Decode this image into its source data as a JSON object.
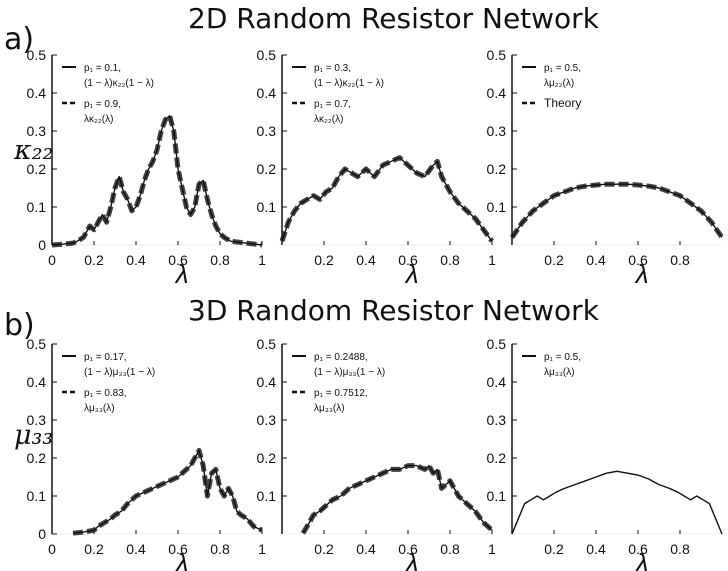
{
  "rows": [
    {
      "tag": "a)",
      "title": "2D Random Resistor Network",
      "ylabel": "κ₂₂"
    },
    {
      "tag": "b)",
      "title": "3D Random Resistor Network",
      "ylabel": "μ₃₃"
    }
  ],
  "chart_data": [
    {
      "type": "line",
      "row": 0,
      "col": 0,
      "xlim": [
        0,
        1
      ],
      "ylim": [
        0,
        0.5
      ],
      "xticks": [
        "0",
        "0.2",
        "0.4",
        "0.6",
        "0.8",
        "1"
      ],
      "yticks": [
        "0",
        "0.1",
        "0.2",
        "0.3",
        "0.4",
        "0.5"
      ],
      "xlabel": "λ",
      "legend": [
        "p₁ = 0.1,",
        "(1 − λ)κ₂₂(1 − λ)",
        "p₁ = 0.9,",
        "λκ₂₂(λ)"
      ],
      "legend_style": [
        "solid",
        null,
        "dashed",
        null
      ],
      "series": [
        {
          "line": "solid-and-dashed",
          "x": [
            0,
            0.05,
            0.1,
            0.12,
            0.15,
            0.18,
            0.2,
            0.22,
            0.24,
            0.26,
            0.28,
            0.3,
            0.32,
            0.34,
            0.36,
            0.38,
            0.4,
            0.42,
            0.44,
            0.46,
            0.48,
            0.5,
            0.52,
            0.54,
            0.56,
            0.58,
            0.6,
            0.62,
            0.64,
            0.66,
            0.68,
            0.7,
            0.72,
            0.74,
            0.76,
            0.78,
            0.8,
            0.82,
            0.85,
            1.0
          ],
          "y": [
            0,
            0.002,
            0.005,
            0.01,
            0.02,
            0.05,
            0.04,
            0.06,
            0.08,
            0.06,
            0.1,
            0.15,
            0.18,
            0.14,
            0.12,
            0.09,
            0.1,
            0.13,
            0.17,
            0.2,
            0.22,
            0.25,
            0.3,
            0.33,
            0.34,
            0.3,
            0.2,
            0.15,
            0.1,
            0.08,
            0.1,
            0.16,
            0.17,
            0.12,
            0.08,
            0.05,
            0.03,
            0.02,
            0.01,
            0
          ]
        }
      ]
    },
    {
      "type": "line",
      "row": 0,
      "col": 1,
      "xlim": [
        0,
        1
      ],
      "ylim": [
        0,
        0.5
      ],
      "xticks": [
        "0.2",
        "0.4",
        "0.6",
        "0.8",
        "1"
      ],
      "yticks": [
        "0.1",
        "0.2",
        "0.3",
        "0.4",
        "0.5"
      ],
      "xlabel": "λ",
      "legend": [
        "p₁ = 0.3,",
        "(1 − λ)κ₂₂(1 − λ)",
        "p₁ = 0.7,",
        "λκ₂₂(λ)"
      ],
      "legend_style": [
        "solid",
        null,
        "dashed",
        null
      ],
      "series": [
        {
          "line": "solid-and-dashed",
          "x": [
            0,
            0.03,
            0.06,
            0.09,
            0.12,
            0.15,
            0.18,
            0.21,
            0.24,
            0.27,
            0.3,
            0.33,
            0.36,
            0.4,
            0.44,
            0.48,
            0.52,
            0.56,
            0.6,
            0.64,
            0.68,
            0.72,
            0.74,
            0.76,
            0.8,
            0.84,
            0.88,
            0.92,
            0.96,
            1.0
          ],
          "y": [
            0.01,
            0.06,
            0.09,
            0.11,
            0.12,
            0.13,
            0.12,
            0.14,
            0.15,
            0.18,
            0.2,
            0.19,
            0.18,
            0.2,
            0.18,
            0.21,
            0.22,
            0.23,
            0.21,
            0.19,
            0.18,
            0.21,
            0.22,
            0.18,
            0.14,
            0.11,
            0.09,
            0.07,
            0.04,
            0.01
          ]
        }
      ]
    },
    {
      "type": "line",
      "row": 0,
      "col": 2,
      "xlim": [
        0,
        1
      ],
      "ylim": [
        0,
        0.5
      ],
      "xticks": [
        "0.2",
        "0.4",
        "0.6",
        "0.8"
      ],
      "yticks": [
        "0.1",
        "0.2",
        "0.3",
        "0.4",
        "0.5"
      ],
      "xlabel": "λ",
      "legend": [
        "p₁ = 0.5,",
        "λμ₂₂(λ)",
        "Theory"
      ],
      "legend_style": [
        "solid",
        null,
        "dashed"
      ],
      "series": [
        {
          "line": "solid-and-dashed",
          "x": [
            0,
            0.05,
            0.1,
            0.15,
            0.2,
            0.25,
            0.3,
            0.35,
            0.4,
            0.45,
            0.5,
            0.55,
            0.6,
            0.65,
            0.7,
            0.75,
            0.8,
            0.85,
            0.9,
            0.95,
            1.0
          ],
          "y": [
            0.02,
            0.06,
            0.09,
            0.11,
            0.13,
            0.14,
            0.15,
            0.155,
            0.158,
            0.16,
            0.16,
            0.16,
            0.158,
            0.155,
            0.15,
            0.14,
            0.13,
            0.11,
            0.09,
            0.06,
            0.02
          ]
        }
      ]
    },
    {
      "type": "line",
      "row": 1,
      "col": 0,
      "xlim": [
        0,
        1
      ],
      "ylim": [
        0,
        0.5
      ],
      "xticks": [
        "0",
        "0.2",
        "0.4",
        "0.6",
        "0.8",
        "1"
      ],
      "yticks": [
        "0",
        "0.1",
        "0.2",
        "0.3",
        "0.4",
        "0.5"
      ],
      "xlabel": "λ",
      "legend": [
        "p₁ = 0.17,",
        "(1 − λ)μ₃₃(1 − λ)",
        "p₁ = 0.83,",
        "λμ₃₃(λ)"
      ],
      "legend_style": [
        "solid",
        null,
        "dashed",
        null
      ],
      "series": [
        {
          "line": "solid-and-dashed",
          "x": [
            0.1,
            0.15,
            0.2,
            0.22,
            0.25,
            0.28,
            0.3,
            0.33,
            0.36,
            0.4,
            0.44,
            0.48,
            0.52,
            0.56,
            0.6,
            0.64,
            0.66,
            0.68,
            0.7,
            0.72,
            0.74,
            0.76,
            0.78,
            0.8,
            0.82,
            0.84,
            0.86,
            0.88,
            0.9,
            0.93,
            0.96,
            1.0
          ],
          "y": [
            0.002,
            0.005,
            0.01,
            0.02,
            0.03,
            0.04,
            0.05,
            0.06,
            0.08,
            0.1,
            0.11,
            0.12,
            0.13,
            0.14,
            0.15,
            0.17,
            0.18,
            0.2,
            0.22,
            0.18,
            0.1,
            0.16,
            0.17,
            0.12,
            0.1,
            0.12,
            0.1,
            0.06,
            0.05,
            0.04,
            0.02,
            0.01
          ]
        }
      ]
    },
    {
      "type": "line",
      "row": 1,
      "col": 1,
      "xlim": [
        0,
        1
      ],
      "ylim": [
        0,
        0.5
      ],
      "xticks": [
        "0.2",
        "0.4",
        "0.6",
        "0.8",
        "1"
      ],
      "yticks": [
        "0.1",
        "0.2",
        "0.3",
        "0.4",
        "0.5"
      ],
      "xlabel": "λ",
      "legend": [
        "p₁ = 0.2488,",
        "(1 − λ)μ₃₃(1 − λ)",
        "p₁ = 0.7512,",
        "λμ₃₃(λ)"
      ],
      "legend_style": [
        "solid",
        null,
        "dashed",
        null
      ],
      "series": [
        {
          "line": "solid-and-dashed",
          "x": [
            0.1,
            0.13,
            0.15,
            0.18,
            0.2,
            0.24,
            0.28,
            0.32,
            0.36,
            0.4,
            0.44,
            0.48,
            0.52,
            0.56,
            0.6,
            0.64,
            0.68,
            0.7,
            0.72,
            0.74,
            0.76,
            0.8,
            0.84,
            0.88,
            0.92,
            0.96,
            1.0
          ],
          "y": [
            0.002,
            0.03,
            0.05,
            0.06,
            0.07,
            0.09,
            0.1,
            0.12,
            0.13,
            0.14,
            0.15,
            0.16,
            0.17,
            0.17,
            0.18,
            0.18,
            0.17,
            0.18,
            0.16,
            0.17,
            0.12,
            0.14,
            0.1,
            0.08,
            0.06,
            0.03,
            0.01
          ]
        }
      ]
    },
    {
      "type": "line",
      "row": 1,
      "col": 2,
      "xlim": [
        0,
        1
      ],
      "ylim": [
        0,
        0.5
      ],
      "xticks": [
        "0.2",
        "0.4",
        "0.6",
        "0.8"
      ],
      "yticks": [
        "0.1",
        "0.2",
        "0.3",
        "0.4",
        "0.5"
      ],
      "xlabel": "λ",
      "legend": [
        "p₁ = 0.5,",
        "λμ₃₃(λ)"
      ],
      "legend_style": [
        "solid",
        null
      ],
      "series": [
        {
          "line": "solid",
          "x": [
            0,
            0.03,
            0.06,
            0.09,
            0.12,
            0.15,
            0.18,
            0.21,
            0.25,
            0.3,
            0.35,
            0.4,
            0.45,
            0.5,
            0.55,
            0.6,
            0.65,
            0.7,
            0.75,
            0.79,
            0.82,
            0.85,
            0.88,
            0.91,
            0.94,
            0.97,
            1.0
          ],
          "y": [
            0,
            0.04,
            0.08,
            0.09,
            0.1,
            0.09,
            0.1,
            0.11,
            0.12,
            0.13,
            0.14,
            0.15,
            0.16,
            0.165,
            0.16,
            0.155,
            0.145,
            0.13,
            0.12,
            0.11,
            0.1,
            0.09,
            0.1,
            0.09,
            0.08,
            0.04,
            0
          ]
        }
      ]
    }
  ]
}
